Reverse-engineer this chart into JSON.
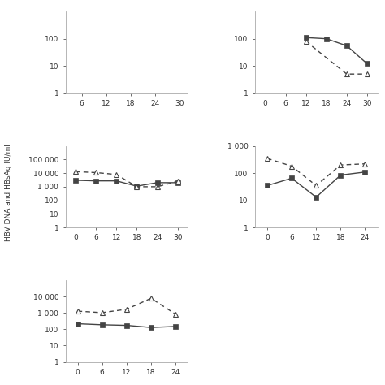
{
  "subplots": [
    {
      "row": 0,
      "col": 0,
      "x": [
        6,
        12,
        18,
        24,
        30
      ],
      "solid_y": null,
      "dashed_y": null,
      "ylim": [
        1,
        1000
      ],
      "yticks": [
        1,
        10,
        100
      ],
      "ytick_labels": [
        "1",
        "10",
        "100"
      ],
      "xticks": [
        6,
        12,
        18,
        24,
        30
      ],
      "xlim": [
        2,
        32
      ],
      "empty": true
    },
    {
      "row": 0,
      "col": 1,
      "x": [
        0,
        6,
        12,
        18,
        24,
        30
      ],
      "solid_y": [
        null,
        null,
        110,
        100,
        55,
        12
      ],
      "dashed_y": [
        null,
        null,
        80,
        null,
        5,
        5
      ],
      "ylim": [
        1,
        1000
      ],
      "yticks": [
        1,
        10,
        100
      ],
      "ytick_labels": [
        "1",
        "10",
        "100"
      ],
      "xticks": [
        0,
        6,
        12,
        18,
        24,
        30
      ],
      "xlim": [
        -3,
        33
      ]
    },
    {
      "row": 1,
      "col": 0,
      "x": [
        0,
        6,
        12,
        18,
        24,
        30
      ],
      "solid_y": [
        3000,
        2700,
        2700,
        1100,
        2000,
        2000
      ],
      "dashed_y": [
        13000,
        11000,
        8000,
        1000,
        1000,
        2500
      ],
      "ylim": [
        1,
        1000000
      ],
      "yticks": [
        1,
        10,
        100,
        1000,
        10000,
        100000
      ],
      "ytick_labels": [
        "1",
        "10",
        "100",
        "1 000",
        "10 000",
        "100 000"
      ],
      "xticks": [
        0,
        6,
        12,
        18,
        24,
        30
      ],
      "xlim": [
        -3,
        33
      ]
    },
    {
      "row": 1,
      "col": 1,
      "x": [
        0,
        6,
        12,
        18,
        24
      ],
      "solid_y": [
        35,
        65,
        13,
        85,
        110
      ],
      "dashed_y": [
        350,
        180,
        35,
        200,
        220
      ],
      "ylim": [
        1,
        1000
      ],
      "yticks": [
        1,
        10,
        100,
        1000
      ],
      "ytick_labels": [
        "1",
        "10",
        "100",
        "1 000"
      ],
      "xticks": [
        0,
        6,
        12,
        18,
        24
      ],
      "xlim": [
        -3,
        27
      ]
    },
    {
      "row": 2,
      "col": 0,
      "x": [
        0,
        6,
        12,
        18,
        24
      ],
      "solid_y": [
        220,
        190,
        175,
        130,
        150
      ],
      "dashed_y": [
        1300,
        1050,
        1700,
        8000,
        850
      ],
      "ylim": [
        1,
        100000
      ],
      "yticks": [
        1,
        10,
        100,
        1000,
        10000
      ],
      "ytick_labels": [
        "1",
        "10",
        "100",
        "1 000",
        "10 000"
      ],
      "xticks": [
        0,
        6,
        12,
        18,
        24
      ],
      "xlim": [
        -3,
        27
      ]
    }
  ],
  "ylabel": "HBV DNA and HBsAg IU/ml",
  "solid_color": "#444444",
  "dashed_color": "#444444",
  "background": "#ffffff",
  "line_width": 1.0,
  "marker_size_sq": 4,
  "marker_size_tri": 5
}
